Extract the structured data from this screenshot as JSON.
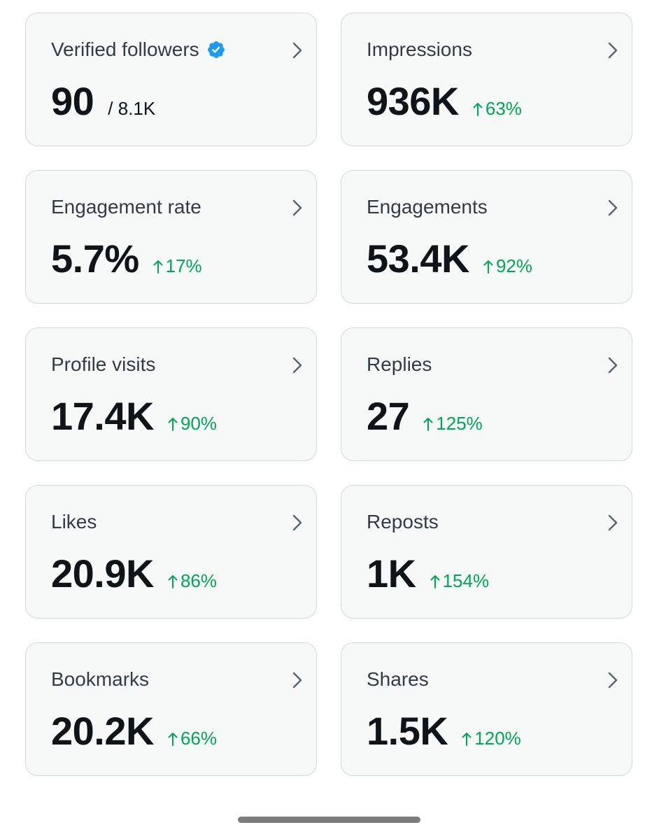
{
  "colors": {
    "card_bg": "#f7f9f9",
    "card_border": "#cfd9de",
    "title_text": "#333c45",
    "value_text": "#0f1419",
    "positive_delta": "#00a657",
    "verified_badge": "#1d9bf0"
  },
  "icons": {
    "verified": "verified-badge-icon",
    "chevron": "chevron-right-icon",
    "delta_up": "arrow-up-icon"
  },
  "metrics": {
    "verified_followers": {
      "label": "Verified followers",
      "value": "90",
      "total": "/ 8.1K"
    },
    "impressions": {
      "label": "Impressions",
      "value": "936K",
      "change": "63%"
    },
    "engagement_rate": {
      "label": "Engagement rate",
      "value": "5.7%",
      "change": "17%"
    },
    "engagements": {
      "label": "Engagements",
      "value": "53.4K",
      "change": "92%"
    },
    "profile_visits": {
      "label": "Profile visits",
      "value": "17.4K",
      "change": "90%"
    },
    "replies": {
      "label": "Replies",
      "value": "27",
      "change": "125%"
    },
    "likes": {
      "label": "Likes",
      "value": "20.9K",
      "change": "86%"
    },
    "reposts": {
      "label": "Reposts",
      "value": "1K",
      "change": "154%"
    },
    "bookmarks": {
      "label": "Bookmarks",
      "value": "20.2K",
      "change": "66%"
    },
    "shares": {
      "label": "Shares",
      "value": "1.5K",
      "change": "120%"
    }
  }
}
